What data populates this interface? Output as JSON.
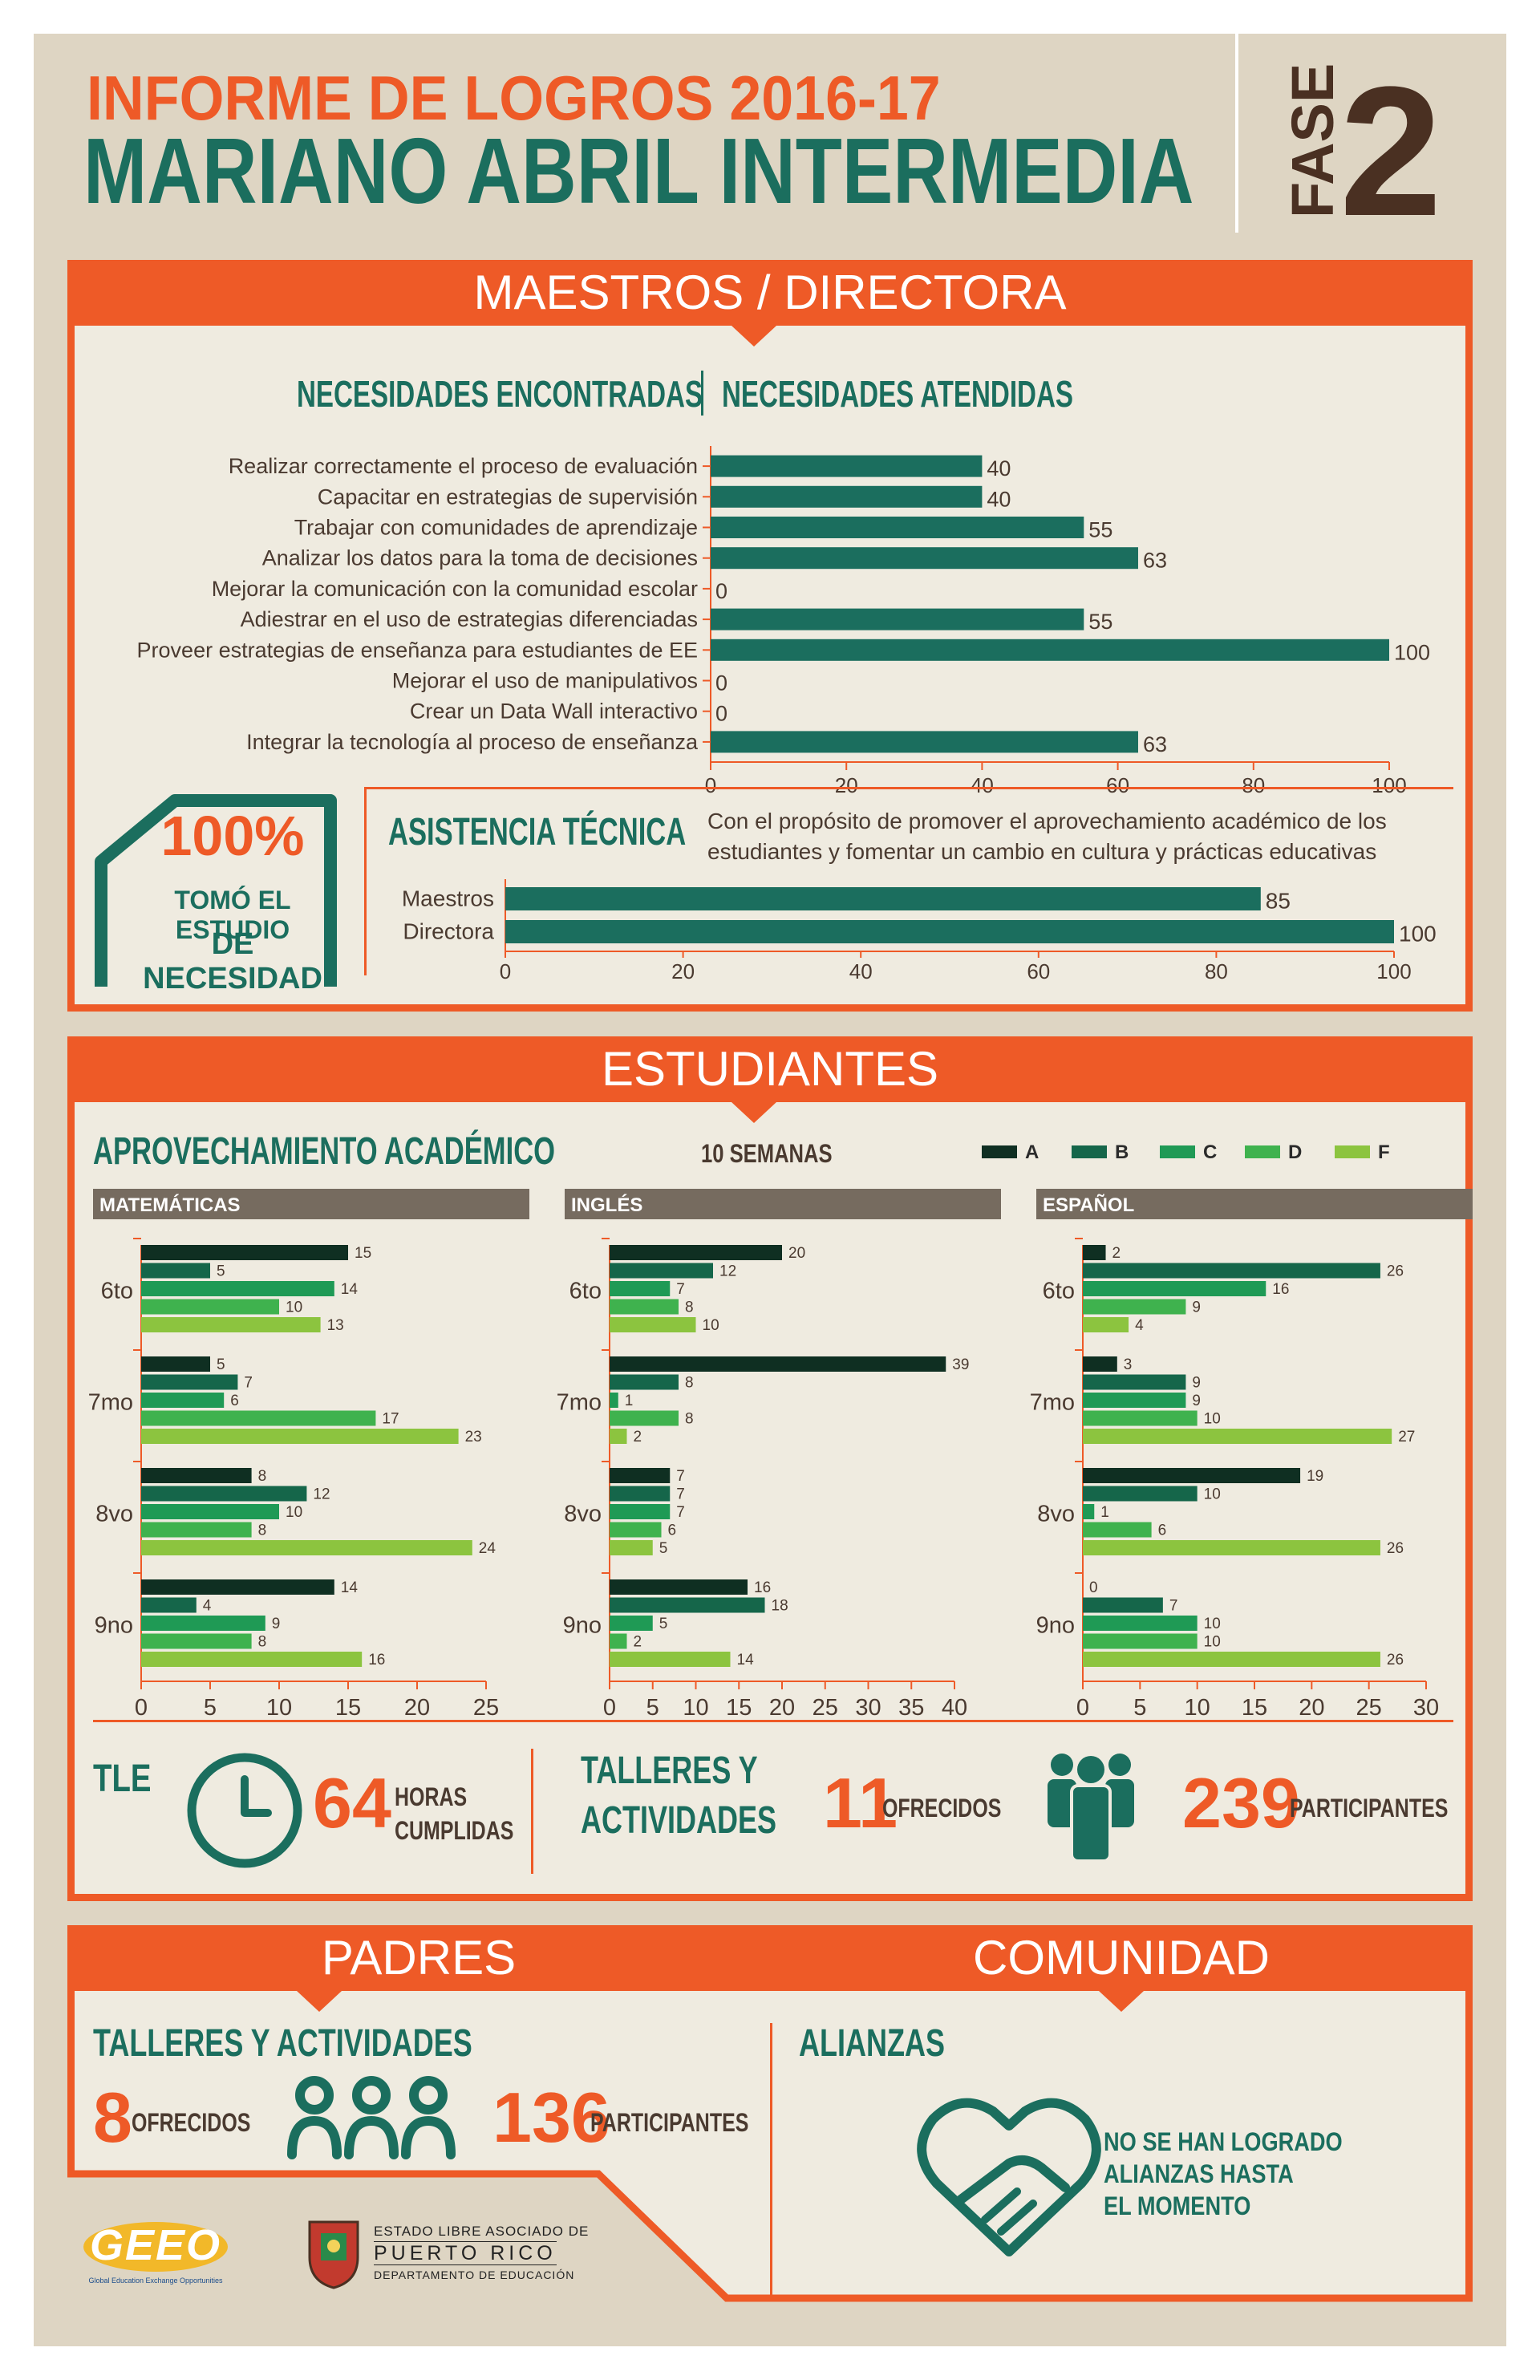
{
  "header": {
    "title_line1": "INFORME DE LOGROS 2016-17",
    "title_line2": "MARIANO ABRIL INTERMEDIA",
    "fase_label": "FASE",
    "fase_number": "2"
  },
  "colors": {
    "orange": "#ee5a27",
    "teal": "#1b6e5e",
    "brown": "#4a3022",
    "grade_A": "#0f2f22",
    "grade_B": "#15664a",
    "grade_C": "#1f9a55",
    "grade_D": "#3fb24e",
    "grade_F": "#8cc43f"
  },
  "maestros": {
    "band_title": "MAESTROS / DIRECTORA",
    "col_left": "NECESIDADES ENCONTRADAS",
    "col_right": "NECESIDADES ATENDIDAS",
    "stat_value": "100%",
    "stat_line1": "TOMÓ EL ESTUDIO",
    "stat_line2": "DE NECESIDAD",
    "asistencia_title": "ASISTENCIA TÉCNICA",
    "asistencia_text_line1": "Con el propósito de promover el aprovechamiento académico de los",
    "asistencia_text_line2": "estudiantes y fomentar un cambio en cultura y prácticas educativas"
  },
  "estudiantes": {
    "band_title": "ESTUDIANTES",
    "aprov_title": "APROVECHAMIENTO ACADÉMICO",
    "period": "10 SEMANAS",
    "tle_label": "TLE",
    "tle_value": "64",
    "tle_unit_line1": "HORAS",
    "tle_unit_line2": "CUMPLIDAS",
    "talleres_line1": "TALLERES Y",
    "talleres_line2": "ACTIVIDADES",
    "talleres_value": "11",
    "talleres_unit": "OFRECIDOS",
    "participantes_value": "239",
    "participantes_unit": "PARTICIPANTES"
  },
  "padres": {
    "band_title": "PADRES",
    "subtitle": "TALLERES Y ACTIVIDADES",
    "ofrecidos_value": "8",
    "ofrecidos_unit": "OFRECIDOS",
    "participantes_value": "136",
    "participantes_unit": "PARTICIPANTES"
  },
  "comunidad": {
    "band_title": "COMUNIDAD",
    "subtitle": "ALIANZAS",
    "note_line1": "NO SE HAN LOGRADO",
    "note_line2": "ALIANZAS HASTA",
    "note_line3": "EL MOMENTO"
  },
  "footer": {
    "geeo_logo": "GEEO",
    "geeo_tagline": "Global Education Exchange Opportunities",
    "pr_line1": "ESTADO LIBRE ASOCIADO DE",
    "pr_line2": "PUERTO RICO",
    "pr_line3": "DEPARTAMENTO DE EDUCACIÓN"
  },
  "chart_data": [
    {
      "type": "bar",
      "orientation": "horizontal",
      "categories": [
        "Realizar correctamente el proceso de evaluación",
        "Capacitar en estrategias de supervisión",
        "Trabajar con comunidades de aprendizaje",
        "Analizar los datos para la toma de decisiones",
        "Mejorar la comunicación con la comunidad escolar",
        "Adiestrar en el uso de estrategias diferenciadas",
        "Proveer estrategias de enseñanza para estudiantes de EE",
        "Mejorar el uso de manipulativos",
        "Crear un Data Wall interactivo",
        "Integrar la tecnología al proceso de enseñanza"
      ],
      "values": [
        40,
        40,
        55,
        63,
        0,
        55,
        100,
        0,
        0,
        63
      ],
      "xlim": [
        0,
        100
      ],
      "xticks": [
        0,
        20,
        40,
        60,
        80,
        100
      ]
    },
    {
      "type": "bar",
      "orientation": "horizontal",
      "categories": [
        "Maestros",
        "Directora"
      ],
      "values": [
        85,
        100
      ],
      "xlim": [
        0,
        100
      ],
      "xticks": [
        0,
        20,
        40,
        60,
        80,
        100
      ]
    },
    {
      "type": "bar",
      "orientation": "horizontal",
      "subject": "MATEMÁTICAS",
      "categories": [
        "6to",
        "7mo",
        "8vo",
        "9no"
      ],
      "series": [
        {
          "name": "A",
          "values": [
            15,
            5,
            8,
            14
          ]
        },
        {
          "name": "B",
          "values": [
            5,
            7,
            12,
            4
          ]
        },
        {
          "name": "C",
          "values": [
            14,
            6,
            10,
            9
          ]
        },
        {
          "name": "D",
          "values": [
            10,
            17,
            8,
            8
          ]
        },
        {
          "name": "F",
          "values": [
            13,
            23,
            24,
            16
          ]
        }
      ],
      "xlim": [
        0,
        25
      ],
      "xticks": [
        0,
        5,
        10,
        15,
        20,
        25
      ]
    },
    {
      "type": "bar",
      "orientation": "horizontal",
      "subject": "INGLÉS",
      "categories": [
        "6to",
        "7mo",
        "8vo",
        "9no"
      ],
      "series": [
        {
          "name": "A",
          "values": [
            20,
            39,
            7,
            16
          ]
        },
        {
          "name": "B",
          "values": [
            12,
            8,
            7,
            18
          ]
        },
        {
          "name": "C",
          "values": [
            7,
            1,
            7,
            5
          ]
        },
        {
          "name": "D",
          "values": [
            8,
            8,
            6,
            2
          ]
        },
        {
          "name": "F",
          "values": [
            10,
            2,
            5,
            14
          ]
        }
      ],
      "xlim": [
        0,
        40
      ],
      "xticks": [
        0,
        5,
        10,
        15,
        20,
        25,
        30,
        35,
        40
      ]
    },
    {
      "type": "bar",
      "orientation": "horizontal",
      "subject": "ESPAÑOL",
      "categories": [
        "6to",
        "7mo",
        "8vo",
        "9no"
      ],
      "series": [
        {
          "name": "A",
          "values": [
            2,
            3,
            19,
            0
          ]
        },
        {
          "name": "B",
          "values": [
            26,
            9,
            10,
            7
          ]
        },
        {
          "name": "C",
          "values": [
            16,
            9,
            1,
            10
          ]
        },
        {
          "name": "D",
          "values": [
            9,
            10,
            6,
            10
          ]
        },
        {
          "name": "F",
          "values": [
            4,
            27,
            26,
            26
          ]
        }
      ],
      "xlim": [
        0,
        30
      ],
      "xticks": [
        0,
        5,
        10,
        15,
        20,
        25,
        30
      ]
    }
  ]
}
